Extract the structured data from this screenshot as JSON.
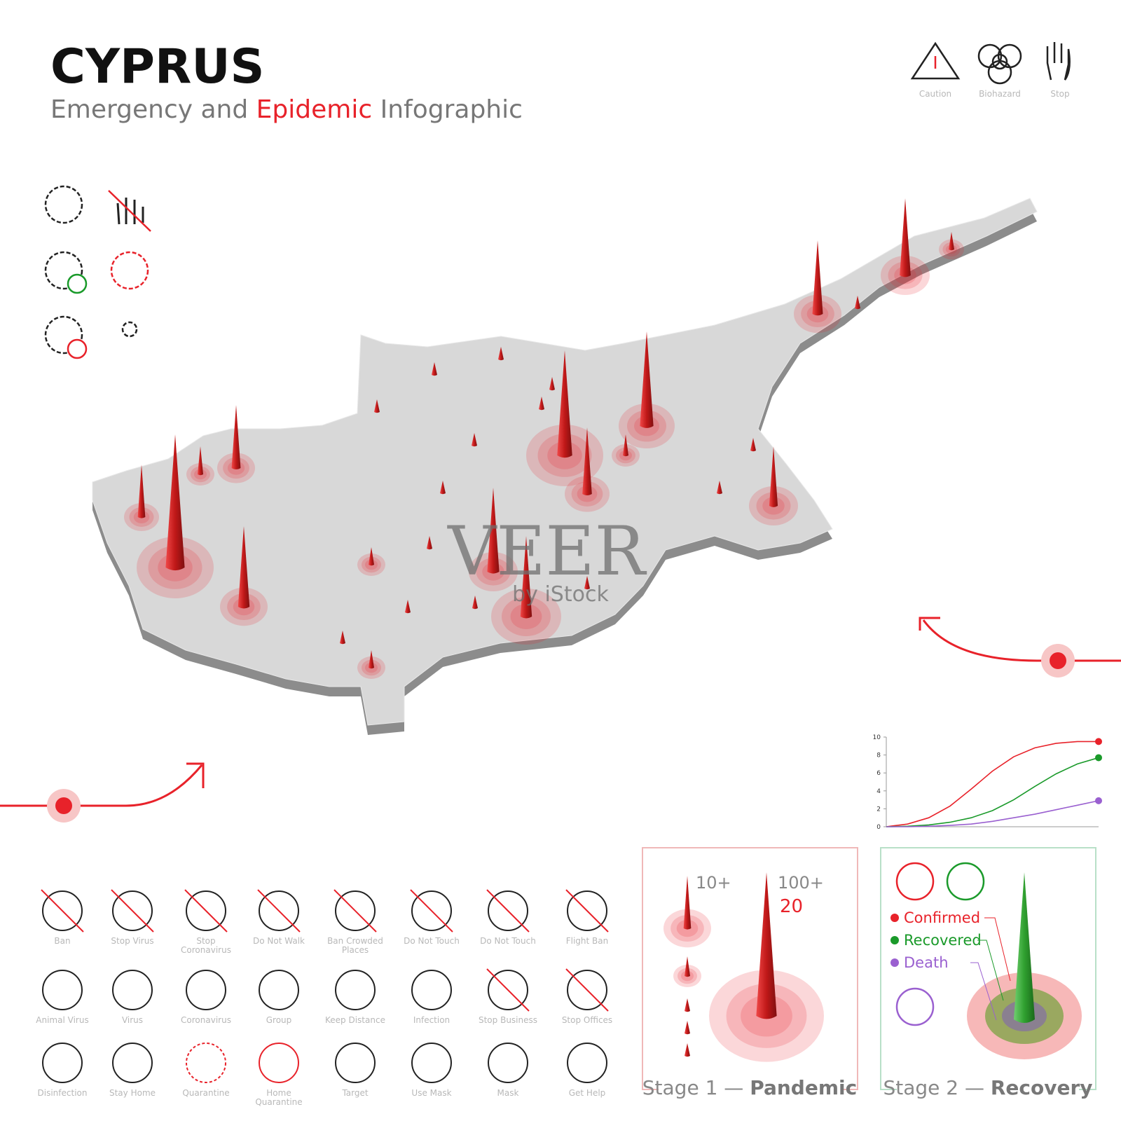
{
  "header": {
    "title": "CYPRUS",
    "subtitle": [
      "Emergency and",
      "Epidemic",
      "Infographic"
    ]
  },
  "top_icons": [
    "Caution",
    "Biohazard",
    "Stop"
  ],
  "watermark": {
    "brand": "VEER",
    "sub": "by iStock"
  },
  "icons": [
    [
      "Ban"
    ],
    [
      "Stop Virus"
    ],
    [
      "Stop",
      "Coronavirus"
    ],
    [
      "Do Not Walk"
    ],
    [
      "Ban Crowded",
      "Places"
    ],
    [
      "Do Not Touch"
    ],
    [
      "Do Not Touch"
    ],
    [
      "Flight Ban"
    ],
    [
      "Animal Virus"
    ],
    [
      "Virus"
    ],
    [
      "Coronavirus"
    ],
    [
      "Group"
    ],
    [
      "Keep Distance"
    ],
    [
      "Infection"
    ],
    [
      "Stop Business"
    ],
    [
      "Stop Offices"
    ],
    [
      "Disinfection"
    ],
    [
      "Stay Home"
    ],
    [
      "Quarantine"
    ],
    [
      "Home",
      "Quarantine"
    ],
    [
      "Target"
    ],
    [
      "Use Mask"
    ],
    [
      "Mask"
    ],
    [
      "Get Help"
    ]
  ],
  "stage1": {
    "small": "10+",
    "large": "100+",
    "count": "20",
    "title": [
      "Stage 1 —",
      "Pandemic"
    ]
  },
  "stage2": {
    "legend": [
      "Confirmed",
      "Recovered",
      "Death"
    ],
    "title": [
      "Stage 2 —",
      "Recovery"
    ]
  },
  "chart_data": {
    "type": "line",
    "categories": [
      null,
      null,
      null,
      null,
      null,
      null,
      null,
      null,
      null,
      null,
      null
    ],
    "ylim": [
      0,
      10
    ],
    "yticks": [
      0,
      2,
      4,
      6,
      8,
      10
    ],
    "series": [
      {
        "name": "Confirmed",
        "color": "#e8222a",
        "values": [
          0,
          0.3,
          1,
          2.3,
          4.2,
          6.2,
          7.8,
          8.8,
          9.3,
          9.5,
          9.5
        ]
      },
      {
        "name": "Recovered",
        "color": "#1a9a2a",
        "values": [
          0,
          0.05,
          0.2,
          0.5,
          1,
          1.8,
          3,
          4.5,
          5.9,
          7,
          7.7
        ]
      },
      {
        "name": "Death",
        "color": "#9a60d0",
        "values": [
          0,
          0,
          0.05,
          0.15,
          0.3,
          0.6,
          1,
          1.4,
          1.9,
          2.4,
          2.9
        ]
      }
    ]
  }
}
